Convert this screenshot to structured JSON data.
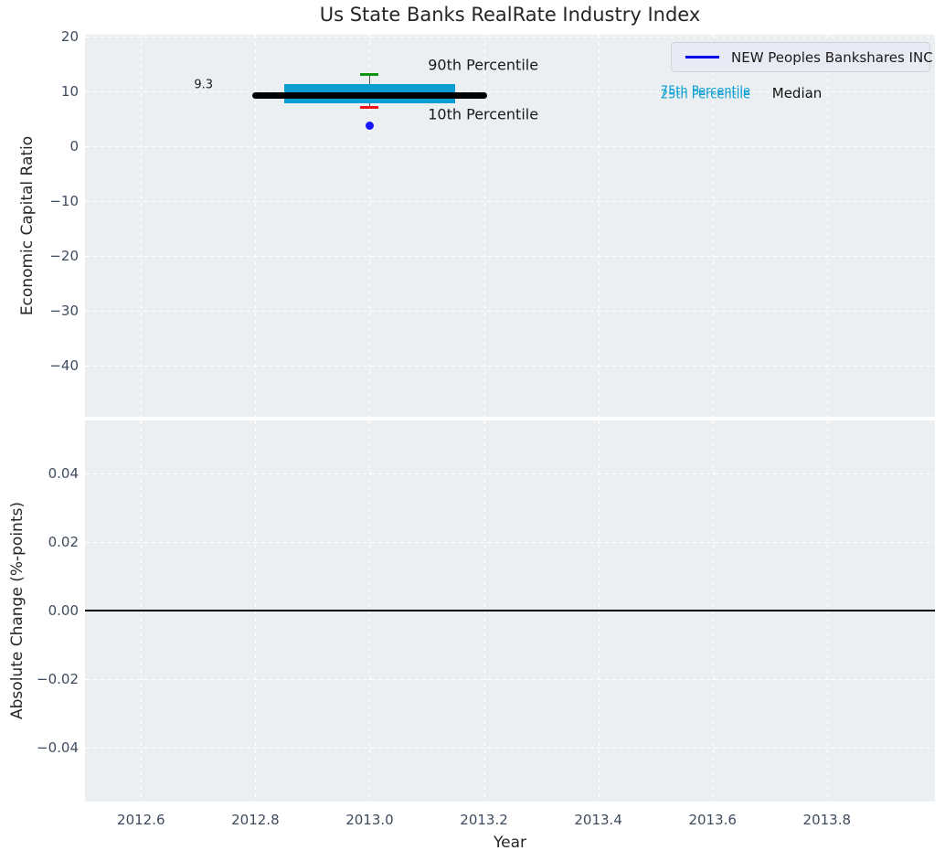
{
  "title": "Us State Banks RealRate Industry Index",
  "legend": {
    "label": "NEW Peoples Bankshares INC",
    "line_color": "#0000ee"
  },
  "x_axis": {
    "label": "Year",
    "xlim": [
      2012.502,
      2013.989
    ],
    "ticks": [
      {
        "v": 2012.6,
        "label": "2012.6"
      },
      {
        "v": 2012.8,
        "label": "2012.8"
      },
      {
        "v": 2013.0,
        "label": "2013.0"
      },
      {
        "v": 2013.2,
        "label": "2013.2"
      },
      {
        "v": 2013.4,
        "label": "2013.4"
      },
      {
        "v": 2013.6,
        "label": "2013.6"
      },
      {
        "v": 2013.8,
        "label": "2013.8"
      }
    ]
  },
  "colors": {
    "plot_bg": "#ebeff1",
    "grid": "#ffffff",
    "tick_text": "#3e4b5e",
    "iqr_box": "#0a9ed1",
    "p90_cap": "#0e940e",
    "p10_cap": "#ee1111",
    "median": "#000000",
    "company_point": "#1414ff",
    "zero_line": "#000000"
  },
  "chart_data": [
    {
      "type": "box",
      "title": "Us State Banks RealRate Industry Index",
      "ylabel": "Economic Capital Ratio",
      "ylim": [
        -49.33,
        20.33
      ],
      "grid": true,
      "yticks": [
        {
          "v": 20,
          "label": "20"
        },
        {
          "v": 10,
          "label": "10"
        },
        {
          "v": 0,
          "label": "0"
        },
        {
          "v": -10,
          "label": "−10"
        },
        {
          "v": -20,
          "label": "−20"
        },
        {
          "v": -30,
          "label": "−30"
        },
        {
          "v": -40,
          "label": "−40"
        }
      ],
      "box": {
        "year": 2013.0,
        "median": 9.3,
        "median_label": "9.3",
        "p75": 11.3,
        "p25": 7.9,
        "p90": 13.0,
        "p10": 7.1,
        "box_width_years": 0.3,
        "median_width_years": 0.41,
        "cap_width_years": 0.032
      },
      "company_point": {
        "label": "NEW Peoples Bankshares INC",
        "year": 2013.0,
        "value": 3.7
      },
      "annotations": [
        {
          "text": "90th Percentile",
          "x": 2013.102,
          "y": 14.8,
          "size": 16,
          "color": "#1a1a1a",
          "anchor": "left"
        },
        {
          "text": "10th Percentile",
          "x": 2013.102,
          "y": 5.8,
          "size": 16,
          "color": "#1a1a1a",
          "anchor": "left"
        },
        {
          "text": "9.3",
          "x": 2012.726,
          "y": 11.2,
          "size": 13,
          "color": "#1a1a1a",
          "anchor": "right"
        },
        {
          "text": "75th Percentile",
          "x": 2013.509,
          "y": 10.0,
          "size": 13,
          "color": "#0a9ed1",
          "anchor": "left"
        },
        {
          "text": "25th Percentile",
          "x": 2013.509,
          "y": 9.33,
          "size": 13,
          "color": "#0a9ed1",
          "anchor": "left"
        },
        {
          "text": "Median",
          "x": 2013.704,
          "y": 9.6,
          "size": 15,
          "color": "#111111",
          "anchor": "left"
        }
      ]
    },
    {
      "type": "line",
      "ylabel": "Absolute Change (%-points)",
      "ylim": [
        -0.0557,
        0.0555
      ],
      "grid": true,
      "yticks": [
        {
          "v": 0.04,
          "label": "0.04"
        },
        {
          "v": 0.02,
          "label": "0.02"
        },
        {
          "v": 0.0,
          "label": "0.00"
        },
        {
          "v": -0.02,
          "label": "−0.02"
        },
        {
          "v": -0.04,
          "label": "−0.04"
        }
      ],
      "zero_line": 0.0
    }
  ]
}
